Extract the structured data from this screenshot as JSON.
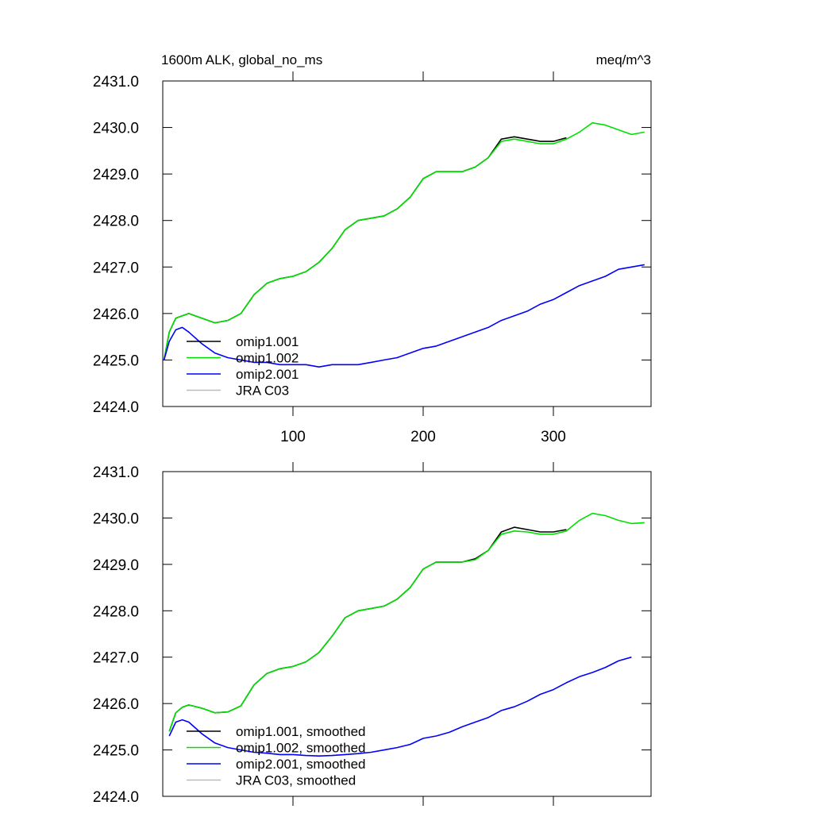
{
  "chart_data": [
    {
      "type": "line",
      "title": "1600m ALK, global_no_ms",
      "units": "meq/m^3",
      "x": [
        1,
        5,
        10,
        15,
        20,
        30,
        40,
        50,
        60,
        70,
        80,
        90,
        100,
        110,
        120,
        130,
        140,
        150,
        160,
        170,
        180,
        190,
        200,
        210,
        220,
        230,
        240,
        250,
        260,
        270,
        280,
        290,
        300,
        310,
        320,
        330,
        340,
        350,
        360,
        370
      ],
      "series": [
        {
          "name": "omip1.001",
          "color": "#000000",
          "values": [
            2425.0,
            2425.6,
            2425.9,
            2425.95,
            2426.0,
            2425.9,
            2425.8,
            2425.85,
            2426.0,
            2426.4,
            2426.65,
            2426.75,
            2426.8,
            2426.9,
            2427.1,
            2427.4,
            2427.8,
            2428.0,
            2428.05,
            2428.1,
            2428.25,
            2428.5,
            2428.9,
            2429.05,
            2429.05,
            2429.05,
            2429.15,
            2429.35,
            2429.75,
            2429.8,
            2429.75,
            2429.7,
            2429.7,
            2429.78,
            null,
            null,
            null,
            null,
            null,
            null
          ]
        },
        {
          "name": "omip1.002",
          "color": "#00e000",
          "values": [
            2425.0,
            2425.6,
            2425.9,
            2425.95,
            2426.0,
            2425.9,
            2425.8,
            2425.85,
            2426.0,
            2426.4,
            2426.65,
            2426.75,
            2426.8,
            2426.9,
            2427.1,
            2427.4,
            2427.8,
            2428.0,
            2428.05,
            2428.1,
            2428.25,
            2428.5,
            2428.9,
            2429.05,
            2429.05,
            2429.05,
            2429.15,
            2429.35,
            2429.7,
            2429.75,
            2429.7,
            2429.65,
            2429.65,
            2429.75,
            2429.9,
            2430.1,
            2430.05,
            2429.95,
            2429.85,
            2429.9
          ]
        },
        {
          "name": "omip2.001",
          "color": "#0000ff",
          "values": [
            2425.0,
            2425.4,
            2425.65,
            2425.7,
            2425.6,
            2425.35,
            2425.15,
            2425.05,
            2425.0,
            2424.95,
            2424.95,
            2424.9,
            2424.9,
            2424.9,
            2424.85,
            2424.9,
            2424.9,
            2424.9,
            2424.95,
            2425.0,
            2425.05,
            2425.15,
            2425.25,
            2425.3,
            2425.4,
            2425.5,
            2425.6,
            2425.7,
            2425.85,
            2425.95,
            2426.05,
            2426.2,
            2426.3,
            2426.45,
            2426.6,
            2426.7,
            2426.8,
            2426.95,
            2427.0,
            2427.05
          ]
        },
        {
          "name": "JRA C03",
          "color": "#bbbbbb",
          "values": [
            null,
            null,
            null,
            null,
            null,
            null,
            null,
            null,
            null,
            null,
            null,
            null,
            null,
            null,
            null,
            null,
            null,
            null,
            null,
            null,
            null,
            null,
            null,
            null,
            null,
            null,
            null,
            null,
            null,
            null,
            null,
            null,
            null,
            null,
            null,
            null,
            null,
            null,
            null,
            null
          ]
        }
      ],
      "xlim": [
        0,
        375
      ],
      "ylim": [
        2424,
        2431
      ],
      "xticks": [
        100,
        200,
        300
      ],
      "yticks": [
        {
          "value": 2424,
          "label": "2424.0"
        },
        {
          "value": 2425,
          "label": "2425.0"
        },
        {
          "value": 2426,
          "label": "2426.0"
        },
        {
          "value": 2427,
          "label": "2427.0"
        },
        {
          "value": 2428,
          "label": "2428.0"
        },
        {
          "value": 2429,
          "label": "2429.0"
        },
        {
          "value": 2430,
          "label": "2430.0"
        },
        {
          "value": 2431,
          "label": "2431.0"
        }
      ],
      "legend": "lower left"
    },
    {
      "type": "line",
      "x": [
        1,
        5,
        10,
        15,
        20,
        30,
        40,
        50,
        60,
        70,
        80,
        90,
        100,
        110,
        120,
        130,
        140,
        150,
        160,
        170,
        180,
        190,
        200,
        210,
        220,
        230,
        240,
        250,
        260,
        270,
        280,
        290,
        300,
        310,
        320,
        330,
        340,
        350,
        360,
        370
      ],
      "series": [
        {
          "name": "omip1.001, smoothed",
          "color": "#000000",
          "values": [
            null,
            2425.4,
            2425.8,
            2425.92,
            2425.97,
            2425.9,
            2425.8,
            2425.82,
            2425.95,
            2426.4,
            2426.65,
            2426.75,
            2426.8,
            2426.9,
            2427.1,
            2427.45,
            2427.85,
            2428.0,
            2428.05,
            2428.1,
            2428.25,
            2428.5,
            2428.9,
            2429.05,
            2429.05,
            2429.05,
            2429.12,
            2429.3,
            2429.7,
            2429.8,
            2429.75,
            2429.7,
            2429.7,
            2429.75,
            null,
            null,
            null,
            null,
            null,
            null
          ]
        },
        {
          "name": "omip1.002, smoothed",
          "color": "#00e000",
          "values": [
            null,
            2425.4,
            2425.8,
            2425.92,
            2425.97,
            2425.9,
            2425.8,
            2425.82,
            2425.95,
            2426.4,
            2426.65,
            2426.75,
            2426.8,
            2426.9,
            2427.1,
            2427.45,
            2427.85,
            2428.0,
            2428.05,
            2428.1,
            2428.25,
            2428.5,
            2428.9,
            2429.05,
            2429.05,
            2429.05,
            2429.1,
            2429.3,
            2429.65,
            2429.72,
            2429.7,
            2429.65,
            2429.65,
            2429.72,
            2429.95,
            2430.1,
            2430.05,
            2429.95,
            2429.88,
            2429.9
          ]
        },
        {
          "name": "omip2.001, smoothed",
          "color": "#0000ff",
          "values": [
            null,
            2425.3,
            2425.6,
            2425.65,
            2425.6,
            2425.35,
            2425.15,
            2425.05,
            2425.0,
            2424.95,
            2424.93,
            2424.9,
            2424.9,
            2424.88,
            2424.87,
            2424.88,
            2424.9,
            2424.92,
            2424.95,
            2425.0,
            2425.05,
            2425.12,
            2425.25,
            2425.3,
            2425.38,
            2425.5,
            2425.6,
            2425.7,
            2425.85,
            2425.93,
            2426.05,
            2426.2,
            2426.3,
            2426.45,
            2426.58,
            2426.67,
            2426.78,
            2426.92,
            2427.0,
            null
          ]
        },
        {
          "name": "JRA C03, smoothed",
          "color": "#bbbbbb",
          "values": [
            null,
            null,
            null,
            null,
            null,
            null,
            null,
            null,
            null,
            null,
            null,
            null,
            null,
            null,
            null,
            null,
            null,
            null,
            null,
            null,
            null,
            null,
            null,
            null,
            null,
            null,
            null,
            null,
            null,
            null,
            null,
            null,
            null,
            null,
            null,
            null,
            null,
            null,
            null,
            null
          ]
        }
      ],
      "xlim": [
        0,
        375
      ],
      "ylim": [
        2424,
        2431
      ],
      "yticks": [
        {
          "value": 2424,
          "label": "2424.0"
        },
        {
          "value": 2425,
          "label": "2425.0"
        },
        {
          "value": 2426,
          "label": "2426.0"
        },
        {
          "value": 2427,
          "label": "2427.0"
        },
        {
          "value": 2428,
          "label": "2428.0"
        },
        {
          "value": 2429,
          "label": "2429.0"
        },
        {
          "value": 2430,
          "label": "2430.0"
        },
        {
          "value": 2431,
          "label": "2431.0"
        }
      ],
      "legend": "lower left"
    }
  ]
}
